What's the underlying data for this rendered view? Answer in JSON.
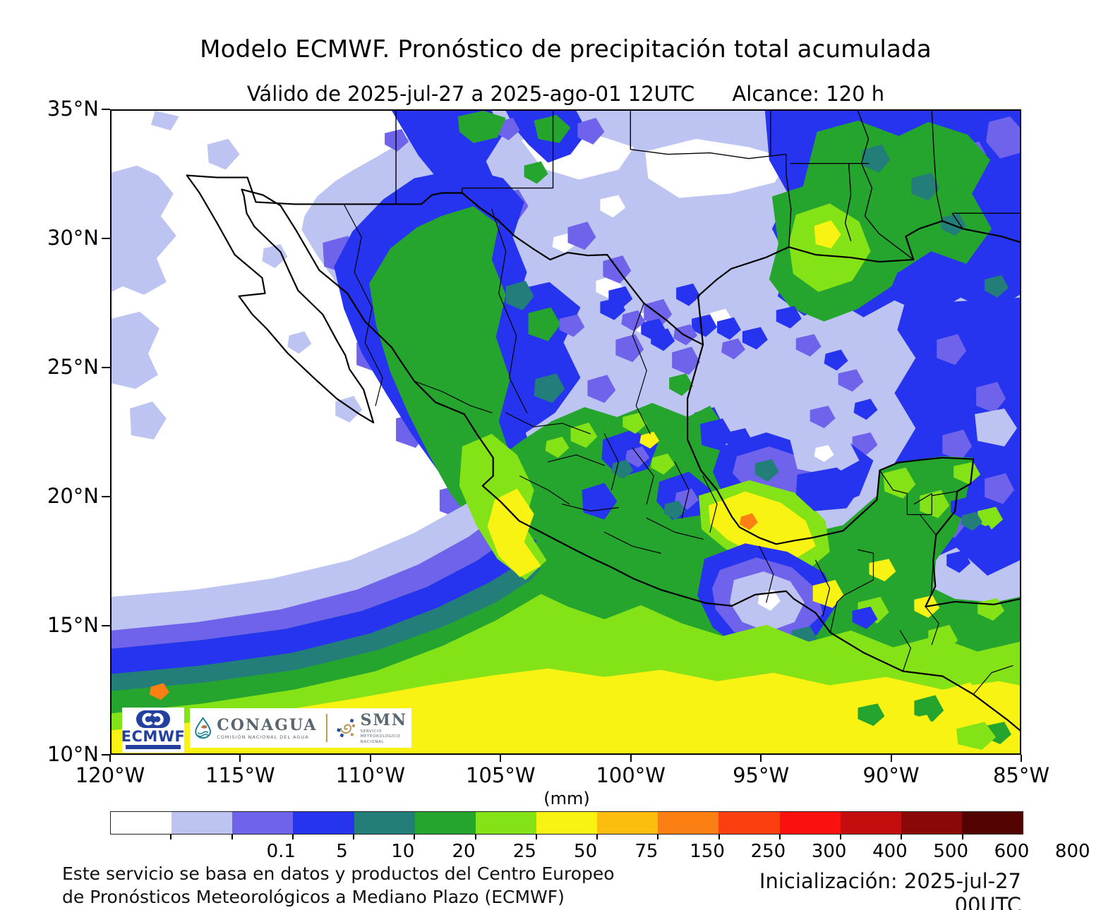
{
  "header": {
    "title": "Modelo ECMWF. Pronóstico de precipitación total acumulada",
    "valid": "Válido de 2025-jul-27 a 2025-ago-01 12UTC",
    "reach": "Alcance: 120 h"
  },
  "axes": {
    "lat": [
      "35°N",
      "30°N",
      "25°N",
      "20°N",
      "15°N",
      "10°N"
    ],
    "lon": [
      "120°W",
      "115°W",
      "110°W",
      "105°W",
      "100°W",
      "95°W",
      "90°W",
      "85°W"
    ]
  },
  "colorbar": {
    "units": "(mm)",
    "labels": [
      "0.1",
      "5",
      "10",
      "20",
      "25",
      "50",
      "75",
      "150",
      "250",
      "300",
      "400",
      "500",
      "600",
      "800"
    ],
    "colors": [
      "#ffffff",
      "#bdc4f2",
      "#6e63ea",
      "#2634f0",
      "#237e79",
      "#26a52e",
      "#84e316",
      "#f8f312",
      "#fcbd0e",
      "#fc7f13",
      "#fb3f0e",
      "#fb1010",
      "#c40d0d",
      "#8a0808",
      "#540303"
    ]
  },
  "logos": {
    "ecmwf": "ECMWF",
    "conagua": "CONAGUA",
    "conagua_sub": "COMISIÓN NACIONAL DEL AGUA",
    "smn": "SMN",
    "smn_sub": [
      "SERVICIO",
      "METEOROLÓGICO",
      "NACIONAL"
    ]
  },
  "footer": {
    "line1": "Este servicio se basa en datos y productos del Centro Europeo",
    "line2": "de Pronósticos Meteorológicos a Mediano Plazo (ECMWF)",
    "init": "Inicialización: 2025-jul-27 00UTC"
  }
}
